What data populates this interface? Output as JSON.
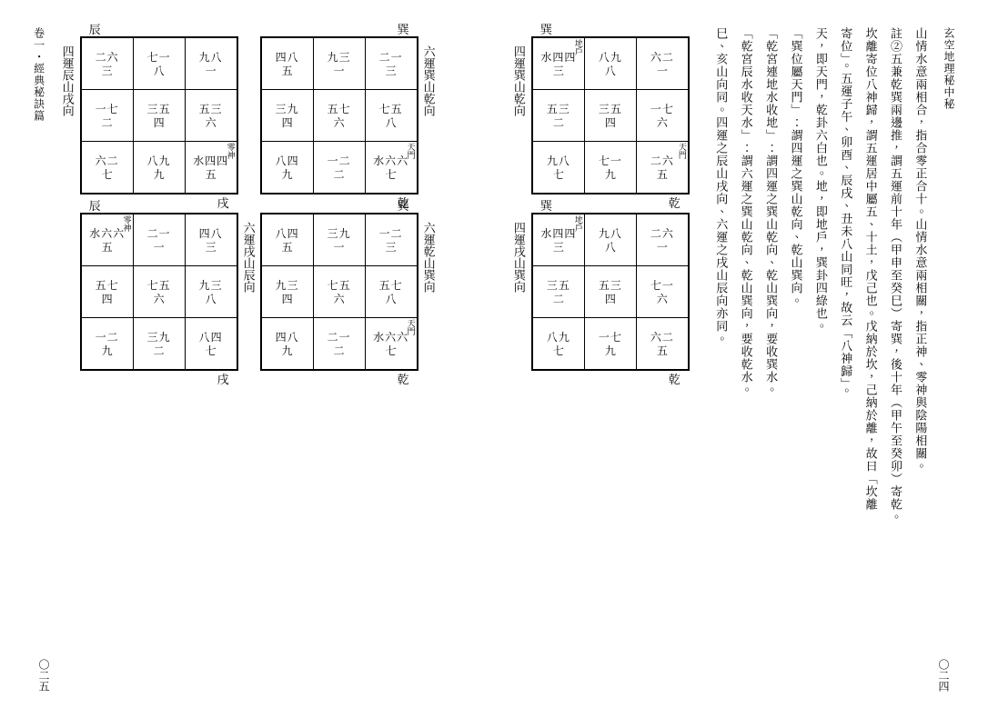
{
  "right": {
    "header": "玄空地理秘中秘",
    "page_num": "〇二四",
    "text_lines": [
      "山情水意兩相合，指合零正合十。山情水意兩相關，指正神、零神與陰陽相關。",
      "註②五兼乾巽兩邊推，謂五運前十年（甲申至癸巳）寄巽，後十年（甲午至癸卯）寄乾。",
      "坎離寄位八神歸，謂五運居中屬五、十土，戊己也。戊納於坎，己納於離，故曰「坎離",
      "寄位」。五運子午、卯酉、辰戌、丑未八山同旺，故云「八神歸」。",
      "天，即天門，乾卦六白也。地，即地戶，巽卦四綠也。",
      "「巽位屬天門」：謂四運之巽山乾向、乾山巽向。",
      "「乾宮連地水收地」：謂四運之巽山乾向、乾山巽向，要收巽水。",
      "「乾宮辰水收天水」：謂六運之巽山乾向、乾山巽向，要收乾水。",
      "巳、亥山向同。四運之辰山戌向、六運之戌山辰向亦同。"
    ],
    "grids": [
      {
        "title": "四運巽山乾向",
        "top_label": "巽",
        "top_pos": "left",
        "bottom_label": "乾",
        "bottom_pos": "right",
        "title_side": "left",
        "cells": [
          [
            {
              "s": "水四四",
              "p": "三",
              "note_tr": "地戶"
            },
            {
              "s": "八九",
              "p": "八"
            },
            {
              "s": "六二",
              "p": "一"
            }
          ],
          [
            {
              "s": "五三",
              "p": "二"
            },
            {
              "s": "三五",
              "p": "四"
            },
            {
              "s": "一七",
              "p": "六"
            }
          ],
          [
            {
              "s": "九八",
              "p": "七"
            },
            {
              "s": "七一",
              "p": "九"
            },
            {
              "s": "二六",
              "p": "五",
              "note_tr": "天門"
            }
          ]
        ]
      },
      {
        "title": "四運戌山巽向",
        "top_label": "巽",
        "top_pos": "left",
        "bottom_label": "乾",
        "bottom_pos": "right",
        "title_side": "left",
        "cells": [
          [
            {
              "s": "水四四",
              "p": "三",
              "note_tr": "地戶"
            },
            {
              "s": "九八",
              "p": "八"
            },
            {
              "s": "二六",
              "p": "一"
            }
          ],
          [
            {
              "s": "三五",
              "p": "二"
            },
            {
              "s": "五三",
              "p": "四"
            },
            {
              "s": "七一",
              "p": "六"
            }
          ],
          [
            {
              "s": "八九",
              "p": "七"
            },
            {
              "s": "一七",
              "p": "九"
            },
            {
              "s": "六二",
              "p": "五"
            }
          ]
        ]
      }
    ]
  },
  "left": {
    "header": "卷一・經典秘訣篇",
    "page_num": "〇二五",
    "grids": [
      {
        "title": "六運巽山乾向",
        "top_label": "巽",
        "top_pos": "right",
        "bottom_label": "乾",
        "bottom_pos": "right",
        "title_side": "right",
        "cells": [
          [
            {
              "s": "四八",
              "p": "五"
            },
            {
              "s": "九三",
              "p": "一"
            },
            {
              "s": "二一",
              "p": "三"
            }
          ],
          [
            {
              "s": "三九",
              "p": "四"
            },
            {
              "s": "五七",
              "p": "六"
            },
            {
              "s": "七五",
              "p": "八"
            }
          ],
          [
            {
              "s": "八四",
              "p": "九"
            },
            {
              "s": "一二",
              "p": "二"
            },
            {
              "s": "水六六",
              "p": "七",
              "note_tr": "天門"
            }
          ]
        ]
      },
      {
        "title": "四運辰山戌向",
        "top_label": "辰",
        "top_pos": "left",
        "bottom_label": "戌",
        "bottom_pos": "right",
        "title_side": "left",
        "cells": [
          [
            {
              "s": "二六",
              "p": "三"
            },
            {
              "s": "七一",
              "p": "八"
            },
            {
              "s": "九八",
              "p": "一"
            }
          ],
          [
            {
              "s": "一七",
              "p": "二"
            },
            {
              "s": "三五",
              "p": "四"
            },
            {
              "s": "五三",
              "p": "六"
            }
          ],
          [
            {
              "s": "六二",
              "p": "七"
            },
            {
              "s": "八九",
              "p": "九"
            },
            {
              "s": "水四四",
              "p": "五",
              "note_tr": "零神"
            }
          ]
        ]
      },
      {
        "title": "六運乾山巽向",
        "top_label": "巽",
        "top_pos": "right",
        "bottom_label": "乾",
        "bottom_pos": "right",
        "title_side": "right",
        "cells": [
          [
            {
              "s": "八四",
              "p": "五"
            },
            {
              "s": "三九",
              "p": "一"
            },
            {
              "s": "一二",
              "p": "三"
            }
          ],
          [
            {
              "s": "九三",
              "p": "四"
            },
            {
              "s": "七五",
              "p": "六"
            },
            {
              "s": "五七",
              "p": "八"
            }
          ],
          [
            {
              "s": "四八",
              "p": "九"
            },
            {
              "s": "二一",
              "p": "二"
            },
            {
              "s": "水六六",
              "p": "七",
              "note_tr": "天門"
            }
          ]
        ]
      },
      {
        "title": "六運戌山辰向",
        "top_label": "辰",
        "top_pos": "left",
        "bottom_label": "戌",
        "bottom_pos": "right",
        "title_side": "right",
        "cells": [
          [
            {
              "s": "水六六",
              "p": "五",
              "note_tr": "零神"
            },
            {
              "s": "二一",
              "p": "一"
            },
            {
              "s": "四八",
              "p": "三"
            }
          ],
          [
            {
              "s": "五七",
              "p": "四"
            },
            {
              "s": "七五",
              "p": "六"
            },
            {
              "s": "九三",
              "p": "八"
            }
          ],
          [
            {
              "s": "一二",
              "p": "九"
            },
            {
              "s": "三九",
              "p": "二"
            },
            {
              "s": "八四",
              "p": "七"
            }
          ]
        ]
      }
    ]
  }
}
